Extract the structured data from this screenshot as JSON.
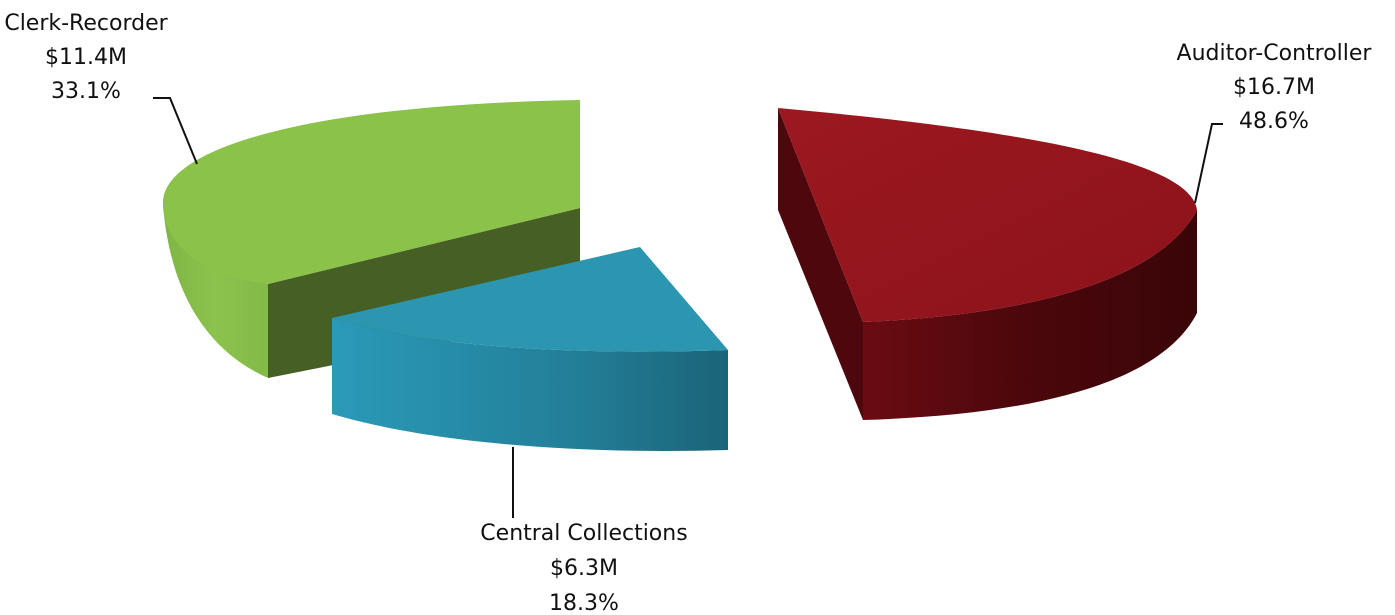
{
  "chart_data": {
    "type": "pie",
    "style": "3d-exploded",
    "title": "",
    "legend": "none",
    "slices": [
      {
        "name": "Auditor-Controller",
        "value_label": "$16.7M",
        "percent_label": "48.6%",
        "value": 16.7,
        "percent": 48.6,
        "color": "#96151e"
      },
      {
        "name": "Central Collections",
        "value_label": "$6.3M",
        "percent_label": "18.3%",
        "value": 6.3,
        "percent": 18.3,
        "color": "#2c96b1"
      },
      {
        "name": "Clerk-Recorder",
        "value_label": "$11.4M",
        "percent_label": "33.1%",
        "value": 11.4,
        "percent": 33.1,
        "color": "#8ac24a"
      }
    ]
  }
}
